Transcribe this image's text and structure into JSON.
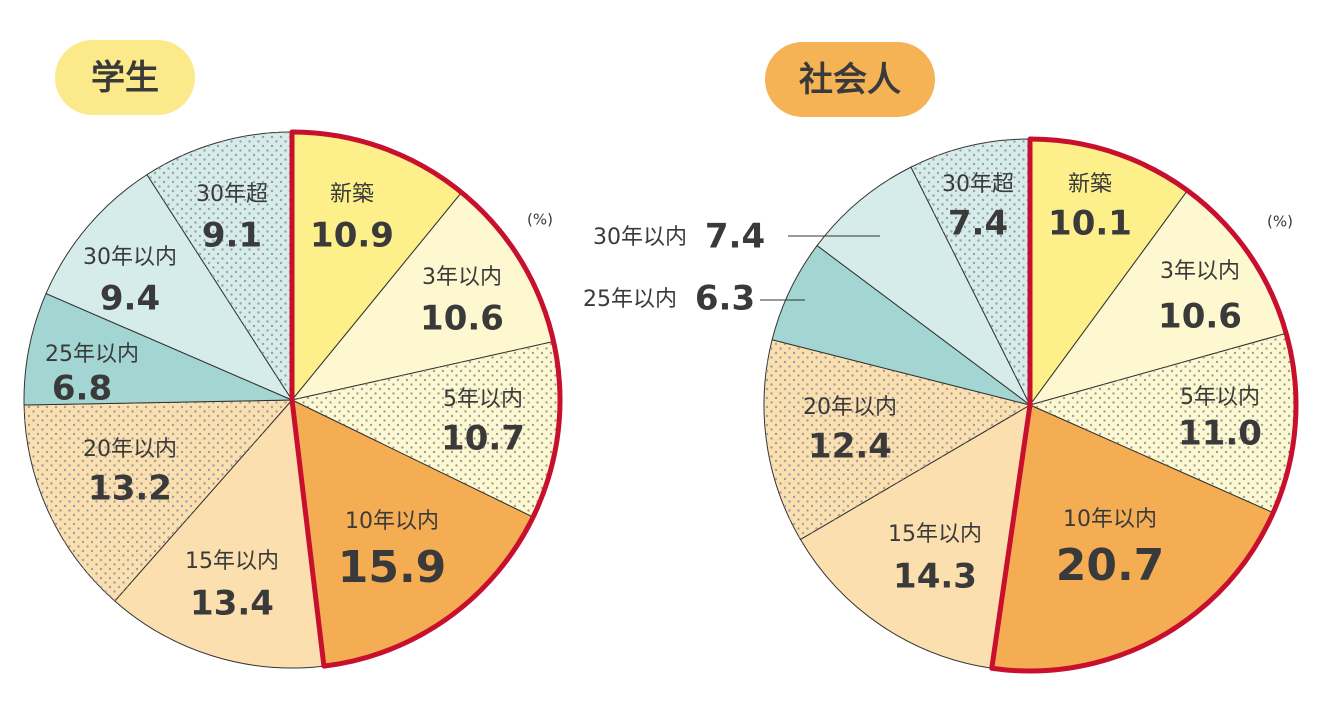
{
  "chart_data": [
    {
      "type": "pie",
      "title": "学生",
      "unit": "(%)",
      "categories": [
        "新築",
        "3年以内",
        "5年以内",
        "10年以内",
        "15年以内",
        "20年以内",
        "25年以内",
        "30年以内",
        "30年超"
      ],
      "values": [
        10.9,
        10.6,
        10.7,
        15.9,
        13.4,
        13.2,
        6.8,
        9.4,
        9.1
      ],
      "colors": [
        "#fdf08a",
        "#fef8d0",
        "#fef8d0",
        "#f5ad54",
        "#fcdfae",
        "#fcdfae",
        "#a3d6d3",
        "#d5ecea",
        "#d5ecea"
      ],
      "dotted": [
        false,
        false,
        true,
        false,
        false,
        true,
        false,
        false,
        true
      ],
      "highlight": [
        true,
        true,
        true,
        true,
        false,
        false,
        false,
        false,
        false
      ],
      "highlight_color": "#c8102e",
      "title_color": "#fbe98a"
    },
    {
      "type": "pie",
      "title": "社会人",
      "unit": "(%)",
      "categories": [
        "新築",
        "3年以内",
        "5年以内",
        "10年以内",
        "15年以内",
        "20年以内",
        "25年以内",
        "30年以内",
        "30年超"
      ],
      "values": [
        10.1,
        10.6,
        11.0,
        20.7,
        14.3,
        12.4,
        6.3,
        7.4,
        7.4
      ],
      "value_labels": [
        "10.1",
        "10.6",
        "11.0",
        "20.7",
        "14.3",
        "12.4",
        "6.3",
        "7.4",
        "7.4"
      ],
      "colors": [
        "#fdf08a",
        "#fef8d0",
        "#fef8d0",
        "#f5ad54",
        "#fcdfae",
        "#fcdfae",
        "#a3d6d3",
        "#d5ecea",
        "#d5ecea"
      ],
      "dotted": [
        false,
        false,
        true,
        false,
        false,
        true,
        false,
        false,
        true
      ],
      "highlight": [
        true,
        true,
        true,
        true,
        false,
        false,
        false,
        false,
        false
      ],
      "highlight_color": "#c8102e",
      "title_color": "#f5b355"
    }
  ]
}
